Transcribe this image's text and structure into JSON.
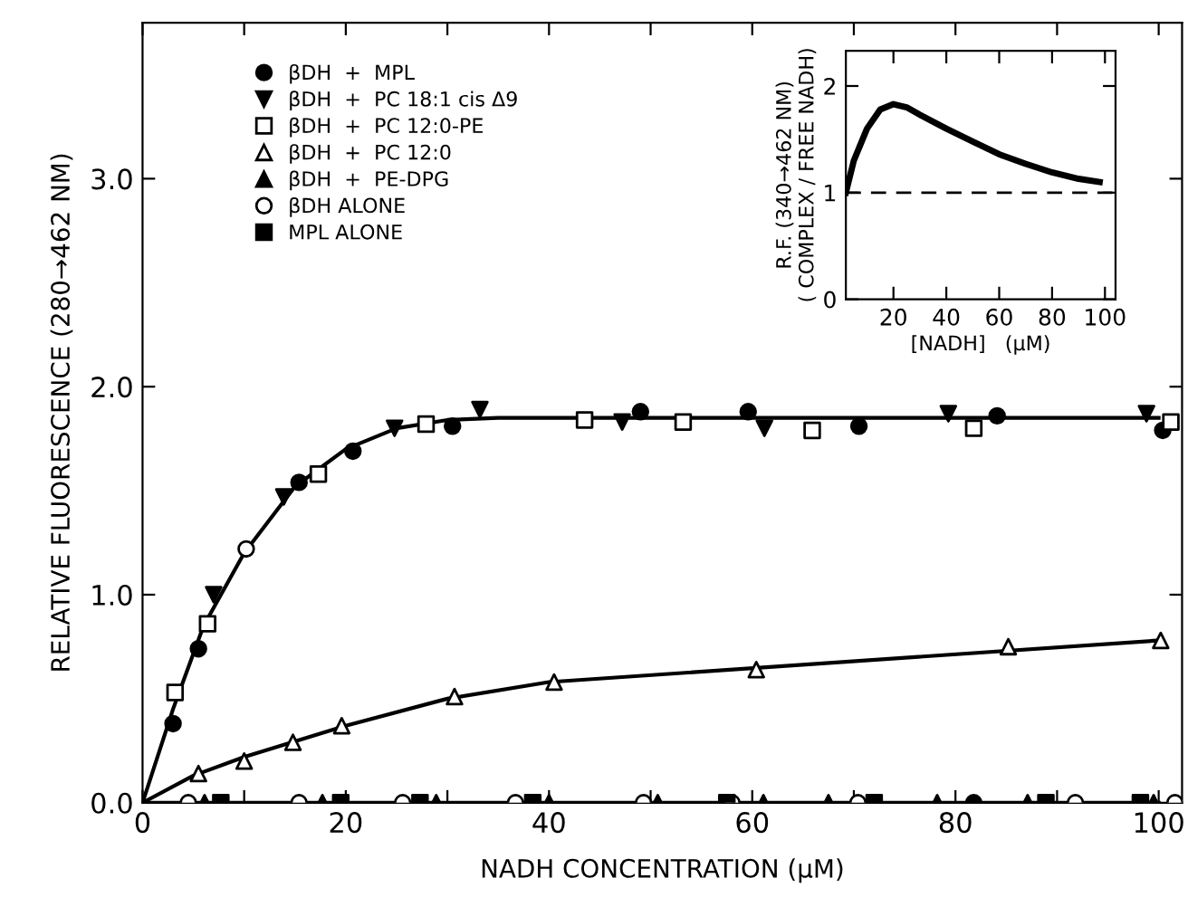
{
  "chart_data": [
    {
      "type": "scatter",
      "xlabel": "NADH CONCENTRATION (μM)",
      "ylabel": "RELATIVE FLUORESCENCE (280→462 NM)",
      "xlim": [
        0,
        102.3
      ],
      "ylim": [
        0,
        3.75
      ],
      "xticks": [
        0,
        {
          "value": 10,
          "label": null
        },
        20,
        {
          "value": 30,
          "label": null
        },
        40,
        {
          "value": 50,
          "label": null
        },
        60,
        {
          "value": 70,
          "label": null
        },
        80,
        {
          "value": 90,
          "label": null
        },
        100
      ],
      "yticks": [
        {
          "value": 0,
          "label": "0.0"
        },
        {
          "value": 1,
          "label": "1.0"
        },
        {
          "value": 2,
          "label": "2.0"
        },
        {
          "value": 3,
          "label": "3.0"
        }
      ],
      "legend": "top left",
      "grid": false,
      "series": [
        {
          "name": "βDH  +  MPL",
          "color": "#000000",
          "marker": "circle",
          "x": [
            3.0,
            5.5,
            15.4,
            20.7,
            30.5,
            49,
            59.6,
            70.5,
            84.1,
            100.4
          ],
          "values": [
            0.38,
            0.74,
            1.54,
            1.69,
            1.81,
            1.88,
            1.88,
            1.81,
            1.86,
            1.79
          ]
        },
        {
          "name": "βDH  +  PC 18:1 cis Δ9",
          "color": "#000000",
          "marker": "triangle-down",
          "x": [
            7.0,
            13.9,
            24.8,
            33.2,
            47.2,
            61.2,
            79.3,
            98.8
          ],
          "values": [
            1.0,
            1.47,
            1.8,
            1.89,
            1.83,
            1.8,
            1.87,
            1.87
          ]
        },
        {
          "name": "βDH  +  PC 12:0-PE",
          "color": "#000000",
          "marker": "square-open",
          "x": [
            3.2,
            6.4,
            17.3,
            27.9,
            43.5,
            53.2,
            65.9,
            81.8,
            101.2
          ],
          "values": [
            0.53,
            0.86,
            1.58,
            1.82,
            1.84,
            1.83,
            1.79,
            1.8,
            1.83
          ]
        },
        {
          "name": "βDH  +  PC 12:0",
          "color": "#000000",
          "marker": "triangle-open",
          "x": [
            5.5,
            10,
            14.8,
            19.6,
            30.7,
            40.5,
            60.4,
            85.2,
            100.2
          ],
          "values": [
            0.14,
            0.2,
            0.29,
            0.37,
            0.51,
            0.58,
            0.64,
            0.75,
            0.78
          ]
        },
        {
          "name": "βDH  +  PE-DPG",
          "color": "#000000",
          "marker": "triangle",
          "x": [
            6.1,
            17.7,
            28.9,
            40,
            50.7,
            61.1,
            67.5,
            78.2,
            87.1,
            99.5
          ],
          "values": [
            0,
            0,
            0,
            0,
            0,
            0,
            0,
            0,
            0,
            0
          ]
        },
        {
          "name": "βDH ALONE",
          "color": "#000000",
          "marker": "circle-open",
          "x": [
            4.5,
            10.2,
            15.4,
            25.6,
            36.7,
            49.3,
            58,
            70.4,
            91.8,
            101.6
          ],
          "values": [
            0,
            1.22,
            0,
            0,
            0,
            0,
            0,
            0,
            0,
            0
          ]
        },
        {
          "name": "MPL ALONE",
          "color": "#000000",
          "marker": "square",
          "x": [
            7.7,
            19.5,
            27.3,
            38.4,
            57.5,
            72,
            88.9,
            98.2
          ],
          "values": [
            0,
            0,
            0,
            0,
            0,
            0,
            0,
            0
          ]
        },
        {
          "color": "#000000",
          "marker": "circle",
          "x": [
            81.8
          ],
          "values": [
            0
          ]
        },
        {
          "type": "line",
          "color": "#000000",
          "marker": "none",
          "x": [
            0,
            3,
            6,
            10,
            15,
            20,
            25,
            30,
            35,
            100
          ],
          "values": [
            0,
            0.45,
            0.85,
            1.2,
            1.52,
            1.7,
            1.8,
            1.84,
            1.85,
            1.85
          ]
        },
        {
          "type": "line",
          "color": "#000000",
          "marker": "none",
          "x": [
            0,
            5,
            10,
            20,
            30,
            40,
            100
          ],
          "values": [
            0,
            0.13,
            0.22,
            0.37,
            0.5,
            0.58,
            0.78
          ]
        },
        {
          "type": "line",
          "color": "#000000",
          "marker": "none",
          "x": [
            0,
            100
          ],
          "values": [
            0,
            0
          ]
        }
      ]
    },
    {
      "type": "line",
      "xlabel": "[NADH]   (μM)",
      "ylabel": "R.F. (340→462 NM)\n( COMPLEX / FREE NADH)",
      "xlim": [
        2,
        104
      ],
      "ylim": [
        0,
        2.33
      ],
      "xticks": [
        20,
        40,
        60,
        80,
        100
      ],
      "yticks": [
        0,
        1,
        2
      ],
      "grid": false,
      "legend": false,
      "series": [
        {
          "color": "#000000",
          "x": [
            2,
            5,
            10,
            15,
            20,
            25,
            30,
            40,
            50,
            60,
            70,
            80,
            90,
            98
          ],
          "values": [
            1.0,
            1.3,
            1.6,
            1.78,
            1.83,
            1.8,
            1.73,
            1.6,
            1.48,
            1.36,
            1.27,
            1.19,
            1.13,
            1.1
          ]
        }
      ],
      "ref_lines": [
        {
          "axis": "y",
          "value": 1,
          "line_style": "dashed",
          "color": "#000000"
        }
      ]
    }
  ]
}
